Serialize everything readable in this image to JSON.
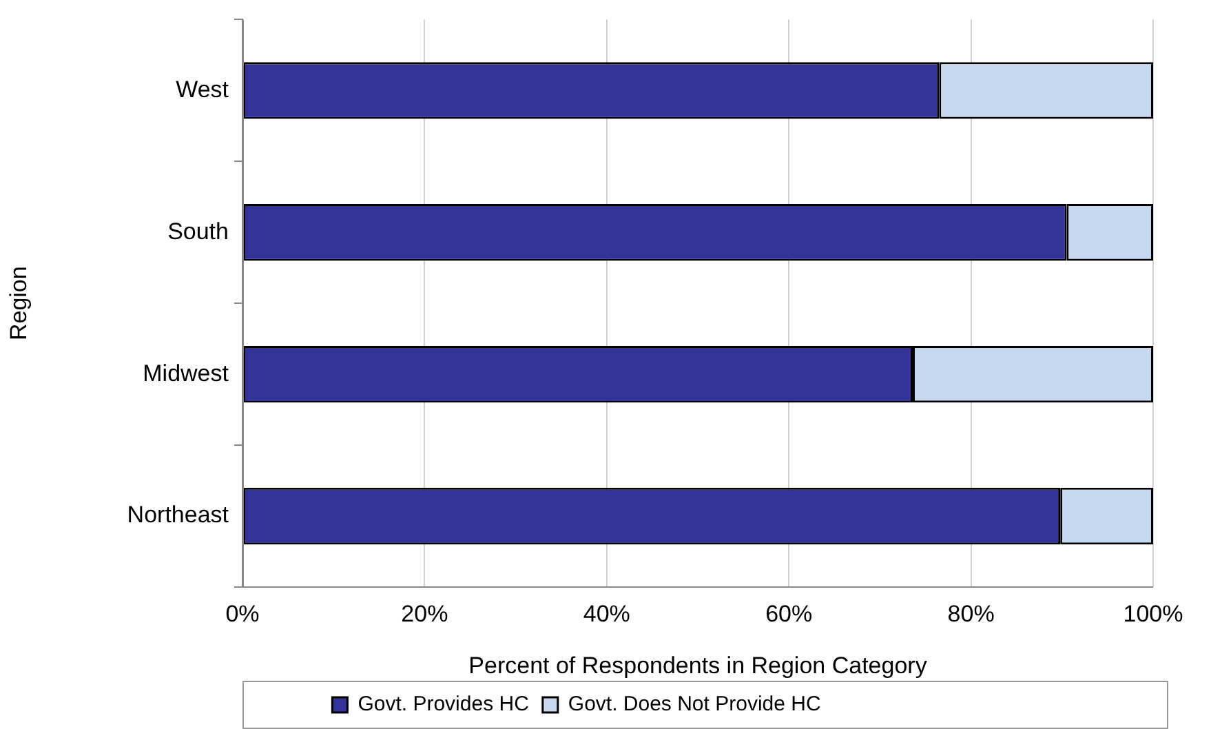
{
  "chart_data": {
    "type": "bar",
    "orientation": "horizontal",
    "stacked": true,
    "xlabel": "Percent of Respondents in Region Category",
    "ylabel": "Region",
    "categories": [
      "West",
      "South",
      "Midwest",
      "Northeast"
    ],
    "series": [
      {
        "name": "Govt. Provides HC",
        "color": "#333399",
        "values": [
          76.5,
          90.5,
          73.6,
          89.8
        ]
      },
      {
        "name": "Govt. Does Not Provide HC",
        "color": "#c6d9f0",
        "values": [
          23.5,
          9.5,
          26.4,
          10.2
        ]
      }
    ],
    "xlim": [
      0,
      100
    ],
    "xticks": [
      {
        "value": 0,
        "label": "0%"
      },
      {
        "value": 20,
        "label": "20%"
      },
      {
        "value": 40,
        "label": "40%"
      },
      {
        "value": 60,
        "label": "60%"
      },
      {
        "value": 80,
        "label": "80%"
      },
      {
        "value": 100,
        "label": "100%"
      }
    ],
    "grid": "x",
    "legend": "bottom"
  }
}
